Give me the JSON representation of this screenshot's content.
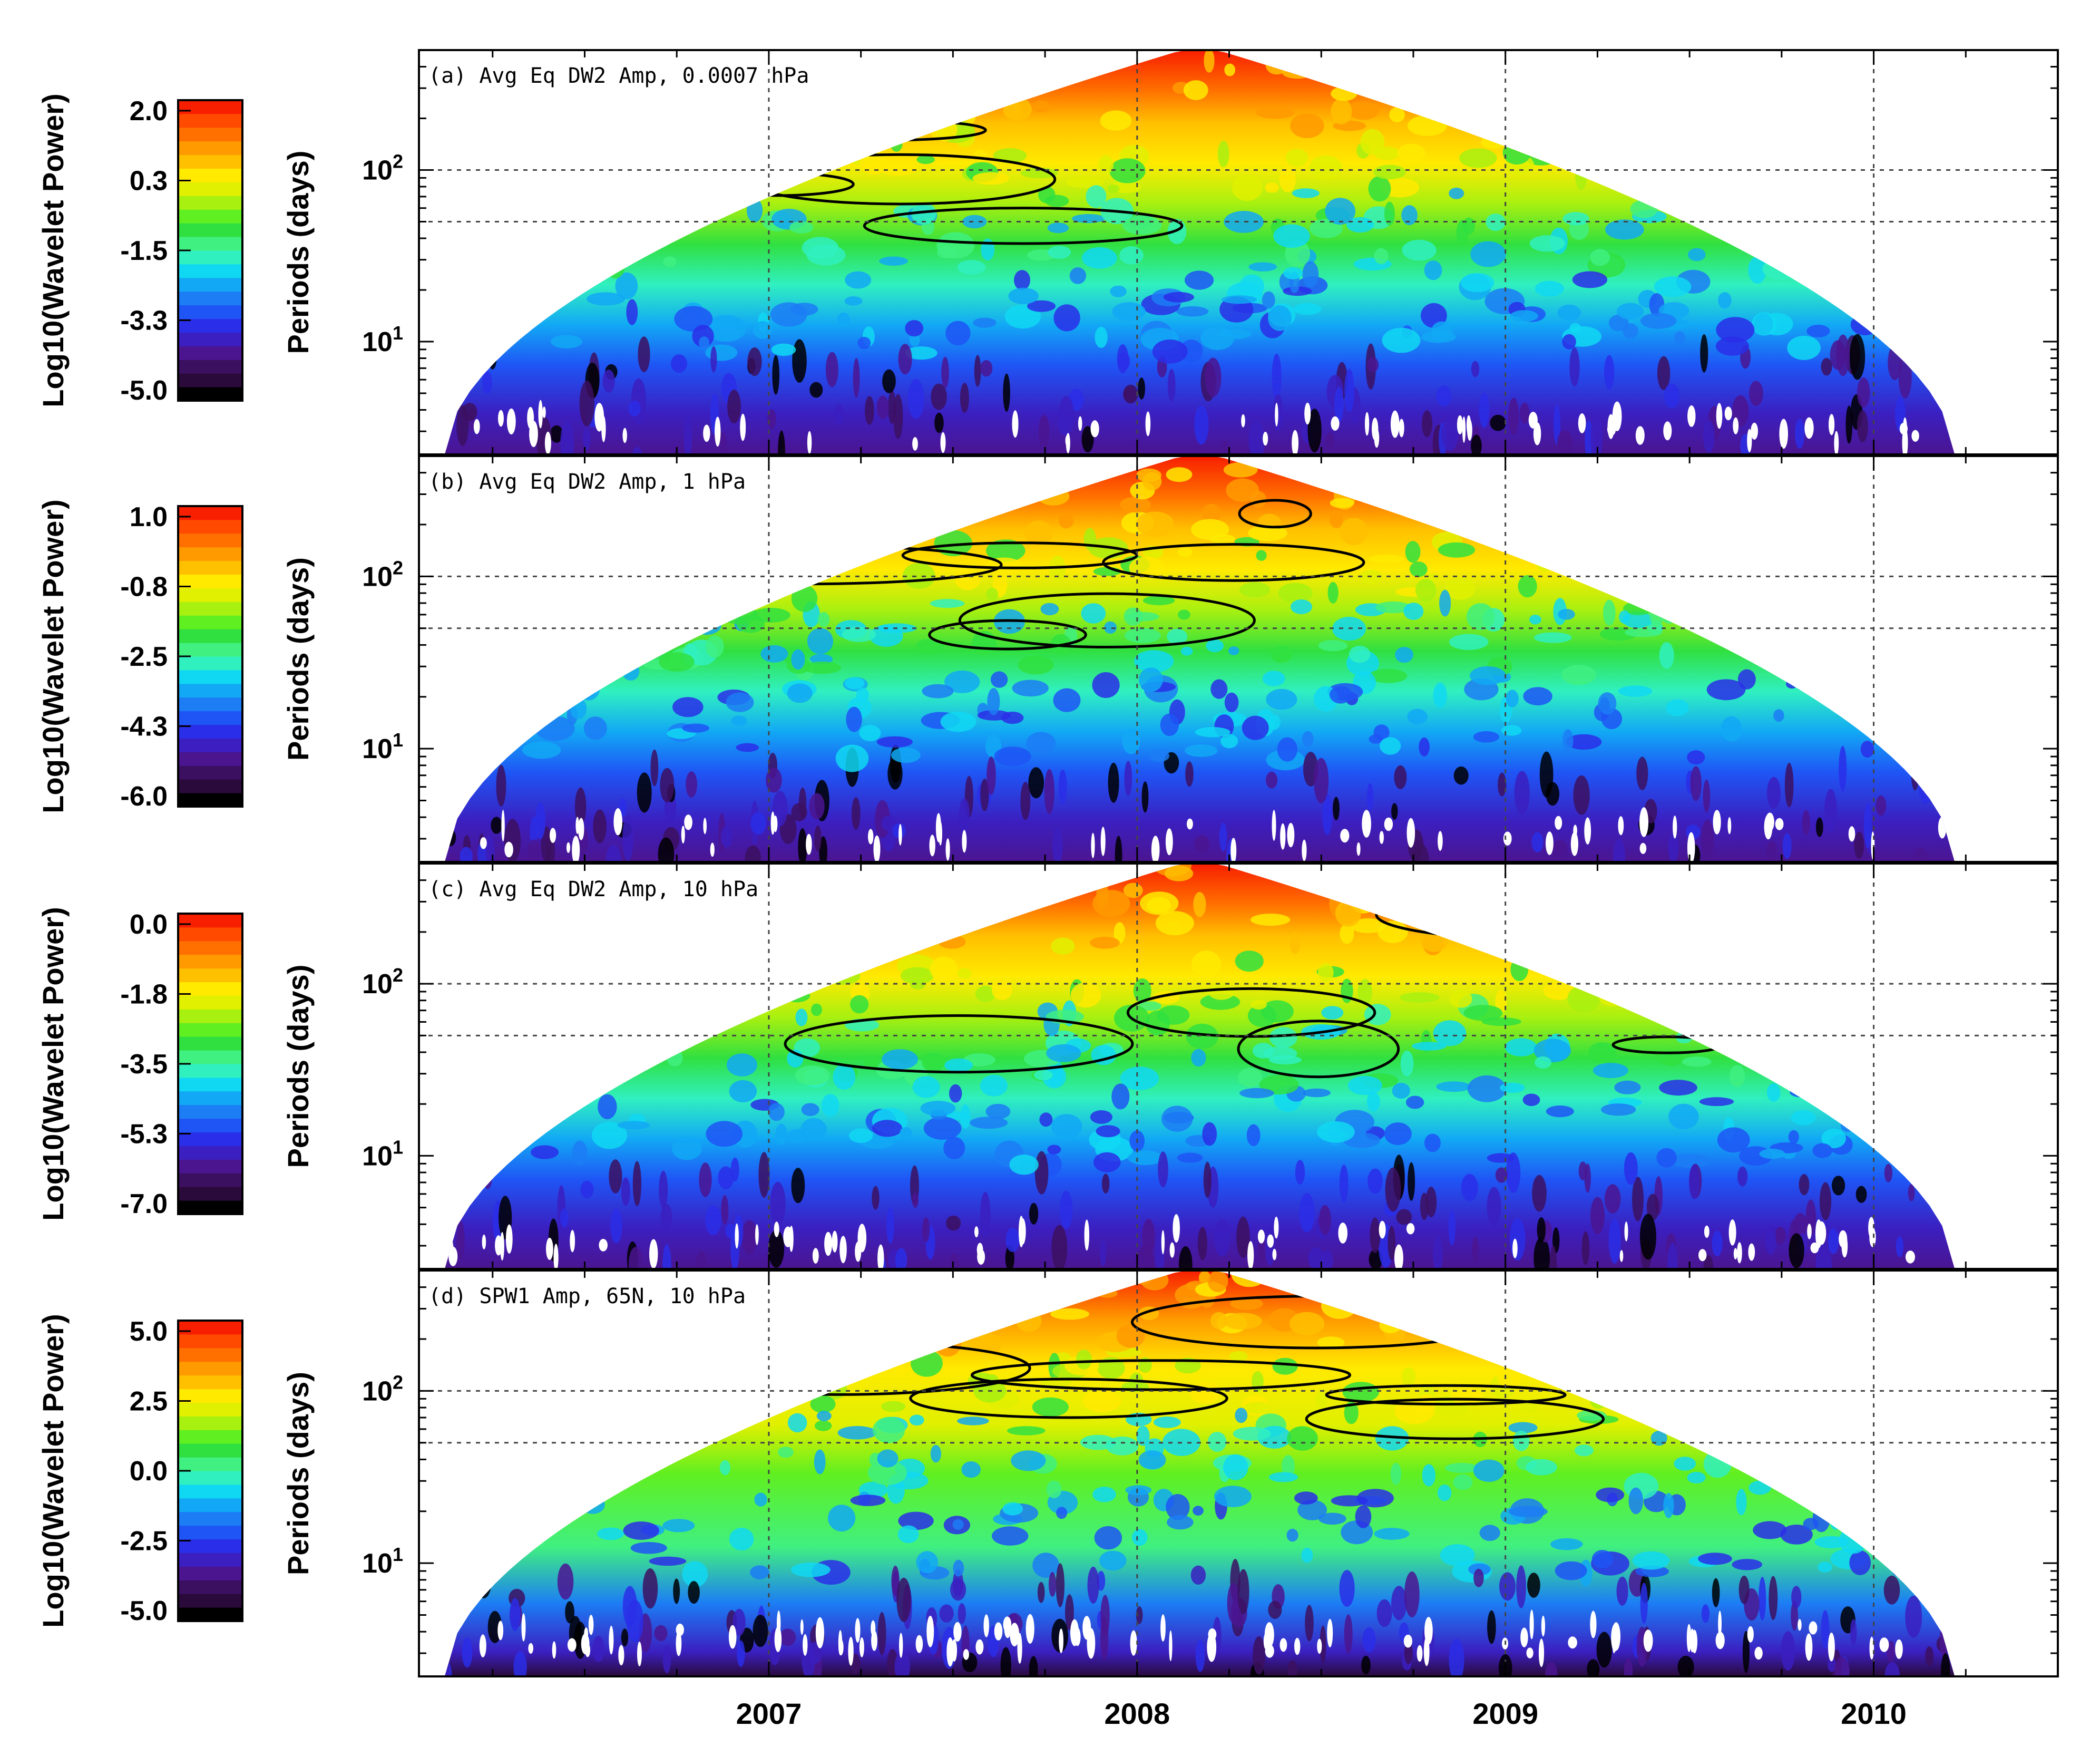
{
  "chart_data": {
    "type": "heatmap",
    "x_tick_labels": [
      "2007",
      "2008",
      "2009",
      "2010"
    ],
    "x_ticks": [
      2007,
      2008,
      2009,
      2010
    ],
    "xlim": [
      2006.05,
      2010.5
    ],
    "y_scale": "log",
    "ylim": [
      2.2,
      500
    ],
    "y_major_ticks": [
      10,
      100
    ],
    "y_gridlines": [
      50,
      100
    ],
    "x_gridlines": [
      2007,
      2008,
      2009,
      2010
    ],
    "ylabel": "Periods (days)",
    "colorbar_label": "Log10(Wavelet Power)",
    "colormap": [
      "#000000",
      "#2a0a3a",
      "#3c1060",
      "#4b1590",
      "#3b1fc0",
      "#2a2ee8",
      "#1f55f5",
      "#1c7df5",
      "#12a8f5",
      "#10d8f2",
      "#30f0c0",
      "#40f080",
      "#30e040",
      "#60ef20",
      "#a8f010",
      "#e0f000",
      "#ffea00",
      "#ffc000",
      "#ff9a00",
      "#ff7000",
      "#ff4a00",
      "#f81e00"
    ],
    "panels": [
      {
        "title": "(a) Avg Eq DW2 Amp, 0.0007 hPa",
        "colorbar_ticks": [
          "2.0",
          "0.3",
          "-1.5",
          "-3.3",
          "-5.0"
        ],
        "colorbar_range": [
          -5.0,
          2.0
        ]
      },
      {
        "title": "(b) Avg Eq DW2 Amp, 1 hPa",
        "colorbar_ticks": [
          "1.0",
          "-0.8",
          "-2.5",
          "-4.3",
          "-6.0"
        ],
        "colorbar_range": [
          -6.0,
          1.0
        ]
      },
      {
        "title": "(c) Avg Eq DW2 Amp, 10 hPa",
        "colorbar_ticks": [
          "0.0",
          "-1.8",
          "-3.5",
          "-5.3",
          "-7.0"
        ],
        "colorbar_range": [
          -7.0,
          0.0
        ]
      },
      {
        "title": "(d) SPW1 Amp, 65N, 10 hPa",
        "colorbar_ticks": [
          "5.0",
          "2.5",
          "0.0",
          "-2.5",
          "-5.0"
        ],
        "colorbar_range": [
          -5.0,
          5.0
        ]
      }
    ]
  }
}
